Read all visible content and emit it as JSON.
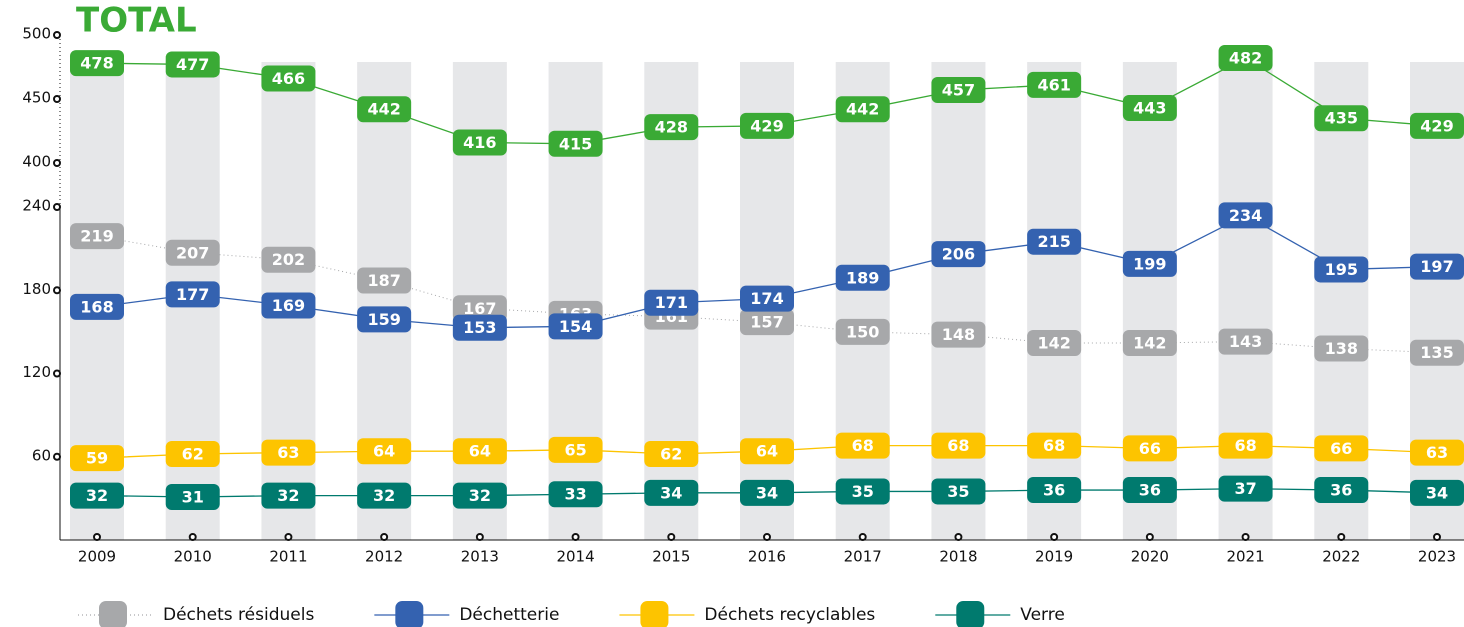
{
  "chart_data": {
    "type": "line",
    "title": "TOTAL",
    "categories": [
      "2009",
      "2010",
      "2011",
      "2012",
      "2013",
      "2014",
      "2015",
      "2016",
      "2017",
      "2018",
      "2019",
      "2020",
      "2021",
      "2022",
      "2023"
    ],
    "ylim": [
      0,
      500
    ],
    "ybreak": [
      240,
      400
    ],
    "yticks": [
      60,
      120,
      180,
      240,
      400,
      450,
      500
    ],
    "series": [
      {
        "color": "#3aaa35",
        "values": [
          478,
          477,
          466,
          442,
          416,
          415,
          428,
          429,
          442,
          457,
          461,
          443,
          482,
          435,
          429
        ]
      },
      {
        "name": "Déchets résiduels",
        "color": "#a7a8aa",
        "dash": "dotted",
        "values": [
          219,
          207,
          202,
          187,
          167,
          163,
          161,
          157,
          150,
          148,
          142,
          142,
          143,
          138,
          135
        ]
      },
      {
        "name": "Déchetterie",
        "color": "#3462b0",
        "values": [
          168,
          177,
          169,
          159,
          153,
          154,
          171,
          174,
          189,
          206,
          215,
          199,
          234,
          195,
          197
        ]
      },
      {
        "name": "Déchets recyclables",
        "color": "#fdc400",
        "values": [
          59,
          62,
          63,
          64,
          64,
          65,
          62,
          64,
          68,
          68,
          68,
          66,
          68,
          66,
          63
        ]
      },
      {
        "name": "Verre",
        "color": "#007a6e",
        "values": [
          32,
          31,
          32,
          32,
          32,
          33,
          34,
          34,
          35,
          35,
          36,
          36,
          37,
          36,
          34
        ]
      }
    ]
  }
}
